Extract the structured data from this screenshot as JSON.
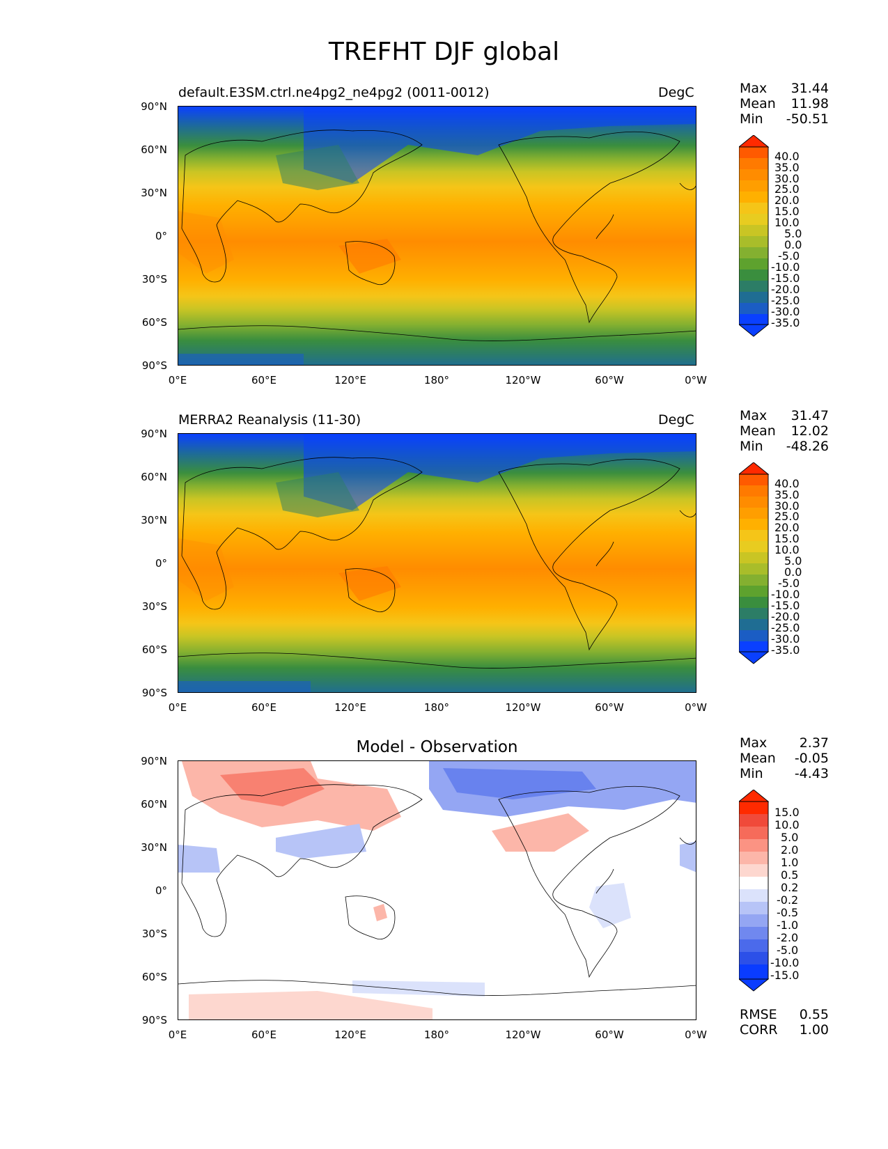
{
  "figure_title": "TREFHT DJF global",
  "panels": [
    {
      "title_left": "default.E3SM.ctrl.ne4pg2_ne4pg2 (0011-0012)",
      "title_right": "DegC",
      "stats": {
        "max_label": "Max",
        "max": "31.44",
        "mean_label": "Mean",
        "mean": "11.98",
        "min_label": "Min",
        "min": "-50.51"
      },
      "colorbar_labels": [
        "40.0",
        "35.0",
        "30.0",
        "25.0",
        "20.0",
        "15.0",
        "10.0",
        "5.0",
        "0.0",
        "-5.0",
        "-10.0",
        "-15.0",
        "-20.0",
        "-25.0",
        "-30.0",
        "-35.0"
      ]
    },
    {
      "title_left": "MERRA2 Reanalysis (11-30)",
      "title_right": "DegC",
      "stats": {
        "max_label": "Max",
        "max": "31.47",
        "mean_label": "Mean",
        "mean": "12.02",
        "min_label": "Min",
        "min": "-48.26"
      },
      "colorbar_labels": [
        "40.0",
        "35.0",
        "30.0",
        "25.0",
        "20.0",
        "15.0",
        "10.0",
        "5.0",
        "0.0",
        "-5.0",
        "-10.0",
        "-15.0",
        "-20.0",
        "-25.0",
        "-30.0",
        "-35.0"
      ]
    },
    {
      "title_center": "Model - Observation",
      "stats": {
        "max_label": "Max",
        "max": "2.37",
        "mean_label": "Mean",
        "mean": "-0.05",
        "min_label": "Min",
        "min": "-4.43"
      },
      "colorbar_labels": [
        "15.0",
        "10.0",
        "5.0",
        "2.0",
        "1.0",
        "0.5",
        "0.2",
        "-0.2",
        "-0.5",
        "-1.0",
        "-2.0",
        "-5.0",
        "-10.0",
        "-15.0"
      ],
      "metrics": {
        "rmse_label": "RMSE",
        "rmse": "0.55",
        "corr_label": "CORR",
        "corr": "1.00"
      }
    }
  ],
  "lat_ticks": [
    "90°N",
    "60°N",
    "30°N",
    "0°",
    "30°S",
    "60°S",
    "90°S"
  ],
  "lon_ticks": [
    "0°E",
    "60°E",
    "120°E",
    "180°",
    "120°W",
    "60°W",
    "0°W"
  ],
  "colors": {
    "temp_scale": [
      "#ff2a00",
      "#ff5a00",
      "#ff7a00",
      "#ff8c00",
      "#ff9e00",
      "#ffb000",
      "#f5c518",
      "#e8cc20",
      "#c9c524",
      "#a9bd2a",
      "#84b030",
      "#5ea22e",
      "#3a8e3e",
      "#2c7d66",
      "#1f6d93",
      "#1b5dc4",
      "#0a40ff"
    ],
    "diff_scale": [
      "#ff2a00",
      "#f04a3a",
      "#f66b5a",
      "#fb9383",
      "#fcb6a9",
      "#fdd7cf",
      "#ffffff",
      "#dbe2fb",
      "#b7c4f7",
      "#94a6f3",
      "#7088ef",
      "#4b6aeb",
      "#2c50e8",
      "#0a3cff"
    ]
  }
}
